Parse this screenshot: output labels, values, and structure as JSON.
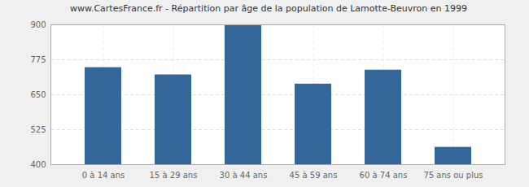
{
  "chart_data": {
    "type": "bar",
    "title": "www.CartesFrance.fr - Répartition par âge de la population de Lamotte-Beuvron en 1999",
    "categories": [
      "0 à 14 ans",
      "15 à 29 ans",
      "30 à 44 ans",
      "45 à 59 ans",
      "60 à 74 ans",
      "75 ans ou plus"
    ],
    "values": [
      747,
      721,
      900,
      688,
      738,
      462
    ],
    "color": "#336699",
    "ylim": [
      400,
      900
    ],
    "yticks": [
      400,
      525,
      650,
      775,
      900
    ],
    "grid": true
  }
}
